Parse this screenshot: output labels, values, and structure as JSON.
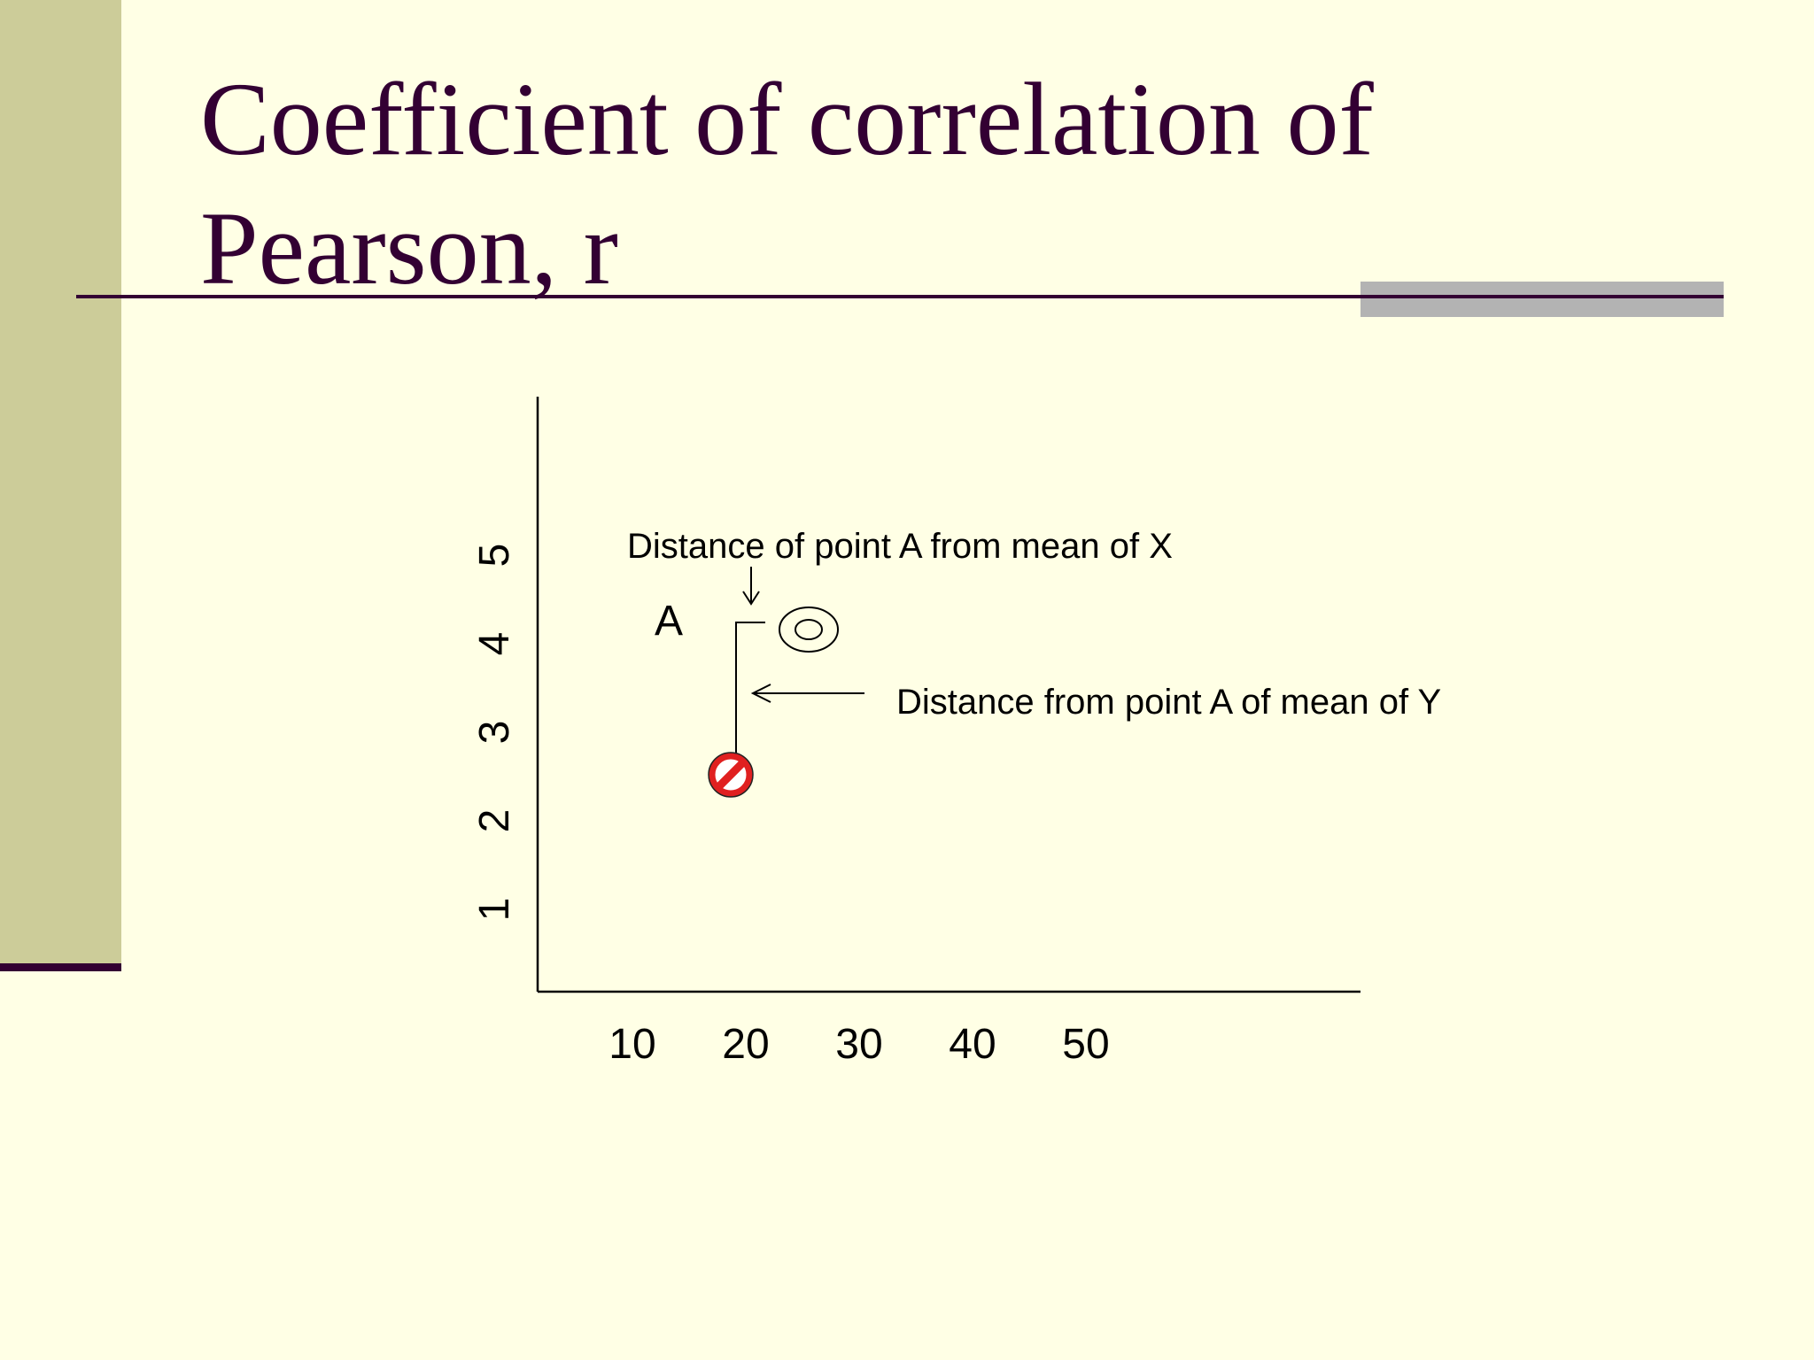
{
  "slide": {
    "title_line1": "Coefficient of correlation of",
    "title_line2": "Pearson, r",
    "background_color": "#ffffe5",
    "accent_color": "#330033",
    "sidebar_color": "#cccc99"
  },
  "diagram": {
    "x_ticks": [
      "10",
      "20",
      "30",
      "40",
      "50"
    ],
    "y_ticks": [
      "1",
      "2",
      "3",
      "4",
      "5"
    ],
    "point_label": "A",
    "annotation_x": "Distance of point A from mean of X",
    "annotation_y": "Distance from point A  of mean of Y",
    "mean_marker_icon": "target-icon",
    "point_marker_icon": "no-entry-icon"
  }
}
